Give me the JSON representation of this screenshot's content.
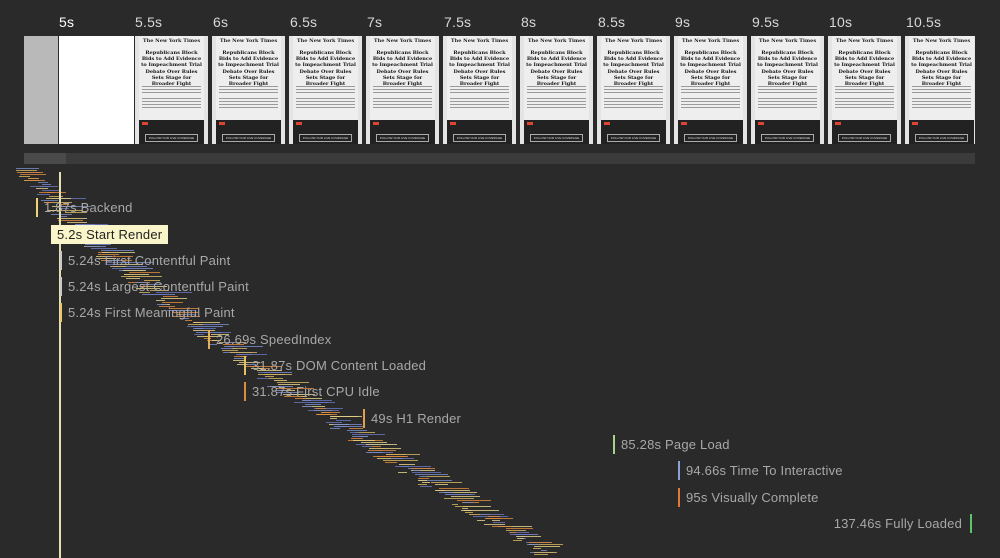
{
  "ruler": {
    "ticks": [
      "5s",
      "5.5s",
      "6s",
      "6.5s",
      "7s",
      "7.5s",
      "8s",
      "8.5s",
      "9s",
      "9.5s",
      "10s",
      "10.5s"
    ],
    "current": "5s"
  },
  "frame_text": {
    "logo": "The New York Times",
    "headline1": "Republicans Block Bids to Add Evidence to Impeachment Trial",
    "headline2": "Debate Over Rules Sets Stage for Broader Fight",
    "button": "FOLLOW OUR LIVE COVERAGE"
  },
  "markers": [
    {
      "label": "1.87s Backend",
      "color": "#f0d27a"
    },
    {
      "label": "5.2s Start Render",
      "color": "#f0e7a6",
      "active": true
    },
    {
      "label": "5.24s First Contentful Paint",
      "color": "#c9c9c9"
    },
    {
      "label": "5.24s Largest Contentful Paint",
      "color": "#c9c9c9"
    },
    {
      "label": "5.24s First Meaningful Paint",
      "color": "#e8c96a"
    },
    {
      "label": "26.69s SpeedIndex",
      "color": "#e2b25a"
    },
    {
      "label": "31.87s DOM Content Loaded",
      "color": "#e3c25d"
    },
    {
      "label": "31.87s First CPU Idle",
      "color": "#e08a3c"
    },
    {
      "label": "49s H1 Render",
      "color": "#e0a050"
    },
    {
      "label": "85.28s Page Load",
      "color": "#a8d28a"
    },
    {
      "label": "94.66s Time To Interactive",
      "color": "#8ea0d8"
    },
    {
      "label": "95s Visually Complete",
      "color": "#e07a3c"
    },
    {
      "label": "137.46s Fully Loaded",
      "color": "#5fc36a"
    }
  ],
  "waterfall_colors": [
    "#e9d58a",
    "#7a8fd0",
    "#e08a3c",
    "#6a78c0",
    "#d9b860"
  ]
}
